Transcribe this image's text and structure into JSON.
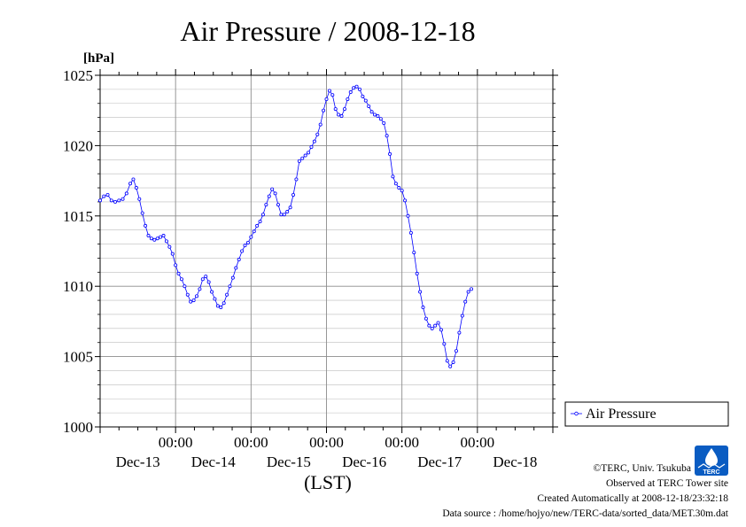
{
  "chart_data": {
    "type": "line",
    "title": "Air Pressure / 2008-12-18",
    "ylabel": "[hPa]",
    "xlabel": "(LST)",
    "ylim": [
      1000,
      1025
    ],
    "yticks": [
      1000,
      1005,
      1010,
      1015,
      1020,
      1025
    ],
    "yticks_text": [
      "1000",
      "1005",
      "1010",
      "1015",
      "1020",
      "1025"
    ],
    "xlim": [
      -1.0,
      5.0
    ],
    "xtick_time_labels": [
      "00:00",
      "00:00",
      "00:00",
      "00:00",
      "00:00"
    ],
    "xtick_day_labels": [
      "Dec-13",
      "Dec-14",
      "Dec-15",
      "Dec-16",
      "Dec-17",
      "Dec-18"
    ],
    "grid": true,
    "legend_position": "right",
    "series": [
      {
        "name": "Air Pressure",
        "color": "#0000ff",
        "marker": "circle",
        "points": [
          [
            -1.0,
            1016.1
          ],
          [
            -0.95,
            1016.4
          ],
          [
            -0.9,
            1016.5
          ],
          [
            -0.85,
            1016.1
          ],
          [
            -0.8,
            1016.0
          ],
          [
            -0.75,
            1016.1
          ],
          [
            -0.7,
            1016.2
          ],
          [
            -0.65,
            1016.6
          ],
          [
            -0.6,
            1017.3
          ],
          [
            -0.56,
            1017.6
          ],
          [
            -0.52,
            1017.0
          ],
          [
            -0.48,
            1016.2
          ],
          [
            -0.44,
            1015.2
          ],
          [
            -0.4,
            1014.3
          ],
          [
            -0.36,
            1013.6
          ],
          [
            -0.32,
            1013.4
          ],
          [
            -0.28,
            1013.3
          ],
          [
            -0.24,
            1013.4
          ],
          [
            -0.2,
            1013.5
          ],
          [
            -0.16,
            1013.6
          ],
          [
            -0.12,
            1013.2
          ],
          [
            -0.08,
            1012.8
          ],
          [
            -0.04,
            1012.3
          ],
          [
            0.0,
            1011.5
          ],
          [
            0.04,
            1010.9
          ],
          [
            0.08,
            1010.5
          ],
          [
            0.12,
            1010.0
          ],
          [
            0.16,
            1009.4
          ],
          [
            0.2,
            1008.9
          ],
          [
            0.24,
            1009.0
          ],
          [
            0.28,
            1009.3
          ],
          [
            0.32,
            1009.8
          ],
          [
            0.36,
            1010.5
          ],
          [
            0.4,
            1010.7
          ],
          [
            0.44,
            1010.3
          ],
          [
            0.48,
            1009.6
          ],
          [
            0.52,
            1009.1
          ],
          [
            0.56,
            1008.6
          ],
          [
            0.6,
            1008.5
          ],
          [
            0.64,
            1008.8
          ],
          [
            0.68,
            1009.4
          ],
          [
            0.72,
            1010.0
          ],
          [
            0.76,
            1010.6
          ],
          [
            0.8,
            1011.3
          ],
          [
            0.84,
            1011.9
          ],
          [
            0.88,
            1012.5
          ],
          [
            0.92,
            1012.9
          ],
          [
            0.96,
            1013.1
          ],
          [
            1.0,
            1013.5
          ],
          [
            1.04,
            1013.9
          ],
          [
            1.08,
            1014.3
          ],
          [
            1.12,
            1014.6
          ],
          [
            1.16,
            1015.1
          ],
          [
            1.2,
            1015.8
          ],
          [
            1.24,
            1016.4
          ],
          [
            1.28,
            1016.9
          ],
          [
            1.32,
            1016.6
          ],
          [
            1.36,
            1015.8
          ],
          [
            1.4,
            1015.1
          ],
          [
            1.44,
            1015.1
          ],
          [
            1.48,
            1015.3
          ],
          [
            1.52,
            1015.6
          ],
          [
            1.56,
            1016.5
          ],
          [
            1.6,
            1017.6
          ],
          [
            1.64,
            1018.9
          ],
          [
            1.68,
            1019.1
          ],
          [
            1.72,
            1019.3
          ],
          [
            1.76,
            1019.5
          ],
          [
            1.8,
            1019.9
          ],
          [
            1.84,
            1020.3
          ],
          [
            1.88,
            1020.8
          ],
          [
            1.92,
            1021.5
          ],
          [
            1.96,
            1022.5
          ],
          [
            2.0,
            1023.3
          ],
          [
            2.04,
            1023.9
          ],
          [
            2.08,
            1023.6
          ],
          [
            2.12,
            1022.6
          ],
          [
            2.16,
            1022.2
          ],
          [
            2.2,
            1022.1
          ],
          [
            2.24,
            1022.6
          ],
          [
            2.28,
            1023.3
          ],
          [
            2.32,
            1023.8
          ],
          [
            2.36,
            1024.1
          ],
          [
            2.4,
            1024.2
          ],
          [
            2.44,
            1024.0
          ],
          [
            2.48,
            1023.5
          ],
          [
            2.52,
            1023.2
          ],
          [
            2.56,
            1022.8
          ],
          [
            2.6,
            1022.4
          ],
          [
            2.64,
            1022.2
          ],
          [
            2.68,
            1022.1
          ],
          [
            2.72,
            1021.9
          ],
          [
            2.76,
            1021.6
          ],
          [
            2.8,
            1020.7
          ],
          [
            2.84,
            1019.4
          ],
          [
            2.88,
            1017.8
          ],
          [
            2.92,
            1017.3
          ],
          [
            2.96,
            1017.0
          ],
          [
            3.0,
            1016.8
          ],
          [
            3.04,
            1016.1
          ],
          [
            3.08,
            1015.0
          ],
          [
            3.12,
            1013.8
          ],
          [
            3.16,
            1012.4
          ],
          [
            3.2,
            1010.9
          ],
          [
            3.24,
            1009.6
          ],
          [
            3.28,
            1008.5
          ],
          [
            3.32,
            1007.7
          ],
          [
            3.36,
            1007.2
          ],
          [
            3.4,
            1007.0
          ],
          [
            3.44,
            1007.2
          ],
          [
            3.48,
            1007.4
          ],
          [
            3.52,
            1006.9
          ],
          [
            3.56,
            1005.9
          ],
          [
            3.6,
            1004.7
          ],
          [
            3.64,
            1004.3
          ],
          [
            3.68,
            1004.6
          ],
          [
            3.72,
            1005.4
          ],
          [
            3.76,
            1006.7
          ],
          [
            3.8,
            1007.9
          ],
          [
            3.84,
            1008.9
          ],
          [
            3.88,
            1009.6
          ],
          [
            3.92,
            1009.8
          ]
        ]
      }
    ]
  },
  "legend": {
    "label": "Air Pressure"
  },
  "footer": {
    "copyright": "©TERC, Univ. Tsukuba",
    "site": "Observed at TERC Tower site",
    "created": "Created Automatically at 2008-12-18/23:32:18",
    "source": "Data source : /home/hojyo/new/TERC-data/sorted_data/MET.30m.dat"
  },
  "logo": {
    "text": "TERC",
    "color": "#0a5cc2"
  }
}
